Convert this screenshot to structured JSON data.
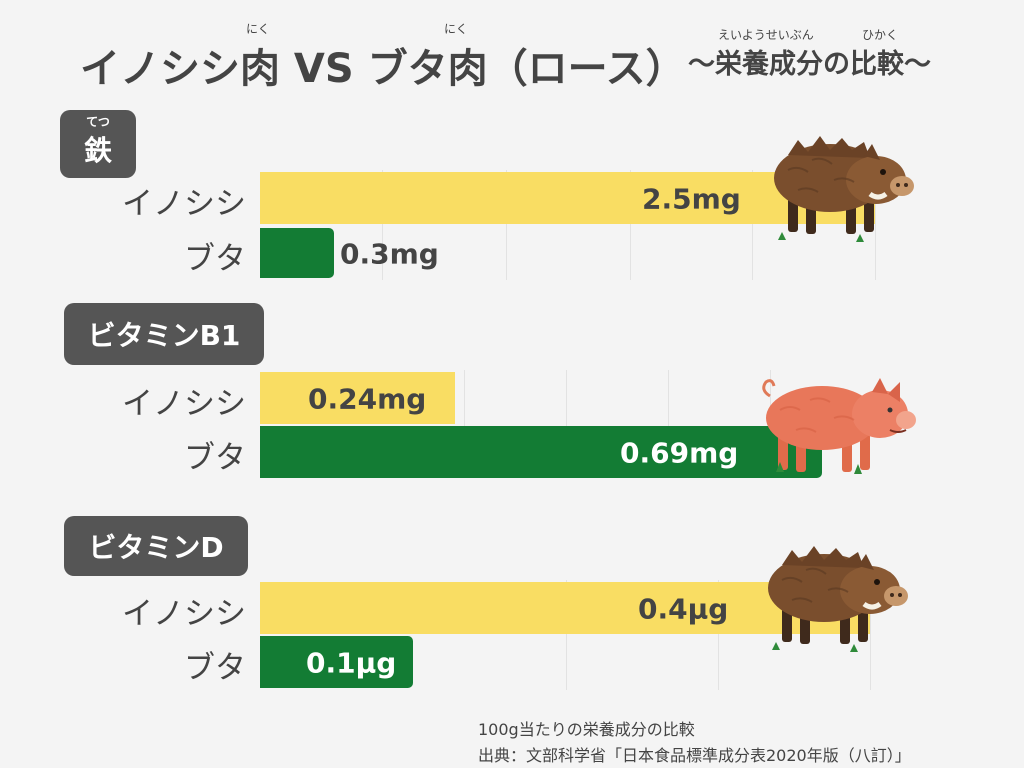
{
  "title": {
    "main": "イノシシ肉 VS ブタ肉（ロース）",
    "sub": "〜栄養成分の比較〜",
    "ruby_niku": "にく",
    "ruby_eiyouseibun": "えいようせいぶん",
    "ruby_hikaku": "ひかく"
  },
  "colors": {
    "inoshishi": "#f9dd63",
    "buta": "#137c34",
    "label_bg": "#555555",
    "background": "#f4f4f4"
  },
  "chart_data": [
    {
      "type": "bar",
      "title": "鉄",
      "title_ruby": "てつ",
      "categories": [
        "イノシシ",
        "ブタ"
      ],
      "values": [
        2.5,
        0.3
      ],
      "unit": "mg",
      "value_labels": [
        "2.5mg",
        "0.3mg"
      ],
      "xlim": [
        0,
        2.5
      ],
      "grid": true
    },
    {
      "type": "bar",
      "title": "ビタミンB1",
      "categories": [
        "イノシシ",
        "ブタ"
      ],
      "values": [
        0.24,
        0.69
      ],
      "unit": "mg",
      "value_labels": [
        "0.24mg",
        "0.69mg"
      ],
      "xlim": [
        0,
        0.69
      ],
      "grid": true
    },
    {
      "type": "bar",
      "title": "ビタミンD",
      "categories": [
        "イノシシ",
        "ブタ"
      ],
      "values": [
        0.4,
        0.1
      ],
      "unit": "µg",
      "value_labels": [
        "0.4µg",
        "0.1µg"
      ],
      "xlim": [
        0,
        0.4
      ],
      "grid": true
    }
  ],
  "animals": [
    "boar-icon",
    "pig-icon",
    "boar-icon"
  ],
  "footer": {
    "note": "100g当たりの栄養成分の比較",
    "source": "出典：文部科学省「日本食品標準成分表2020年版（八訂）」"
  }
}
